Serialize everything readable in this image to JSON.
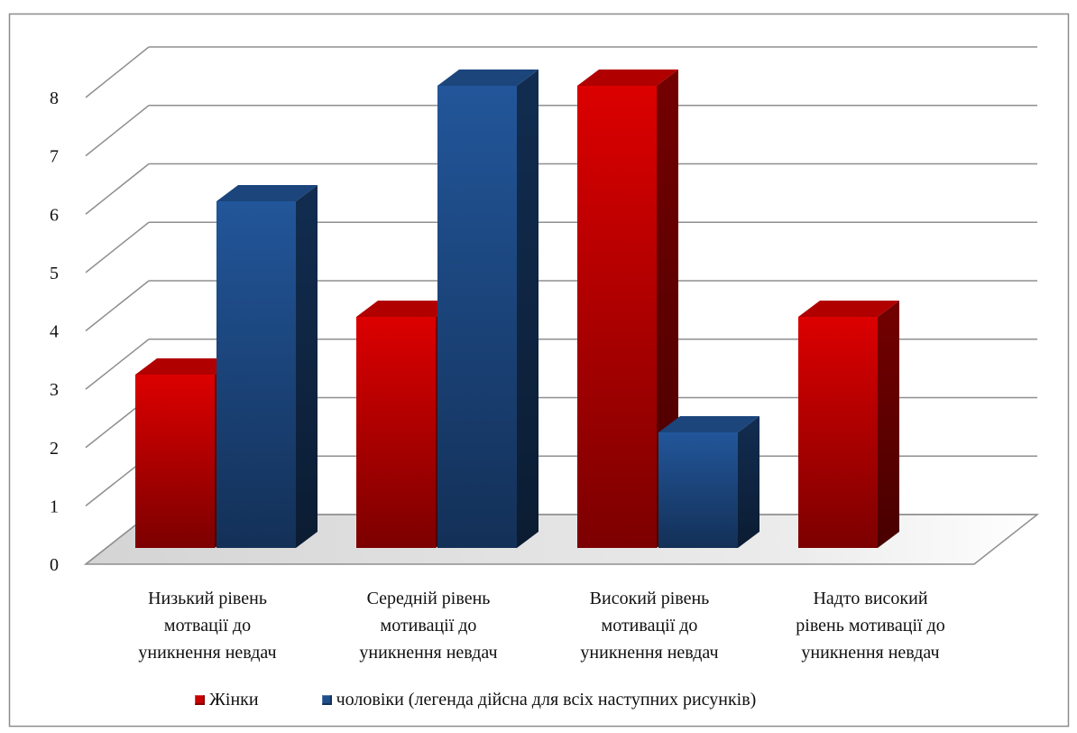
{
  "chart_data": {
    "type": "bar",
    "style": "3d-clustered-column",
    "categories": [
      "Низький рівень\nмотвації до\nуникнення невдач",
      "Середній рівень\nмотивації до\nуникнення невдач",
      "Високий рівень\nмотивації до\nуникнення невдач",
      "Надто високий\nрівень мотивації до\nуникнення невдач"
    ],
    "series": [
      {
        "name": "Жінки",
        "values": [
          3,
          4,
          8,
          4
        ],
        "color": "#c80000"
      },
      {
        "name": "чоловіки (легенда дійсна для всіх наступних рисунків)",
        "values": [
          6,
          8,
          2,
          0
        ],
        "color": "#1f4e8c"
      }
    ],
    "ylim": [
      0,
      8
    ],
    "yticks": [
      0,
      1,
      2,
      3,
      4,
      5,
      6,
      7,
      8
    ],
    "grid": true,
    "legend": "bottom"
  }
}
